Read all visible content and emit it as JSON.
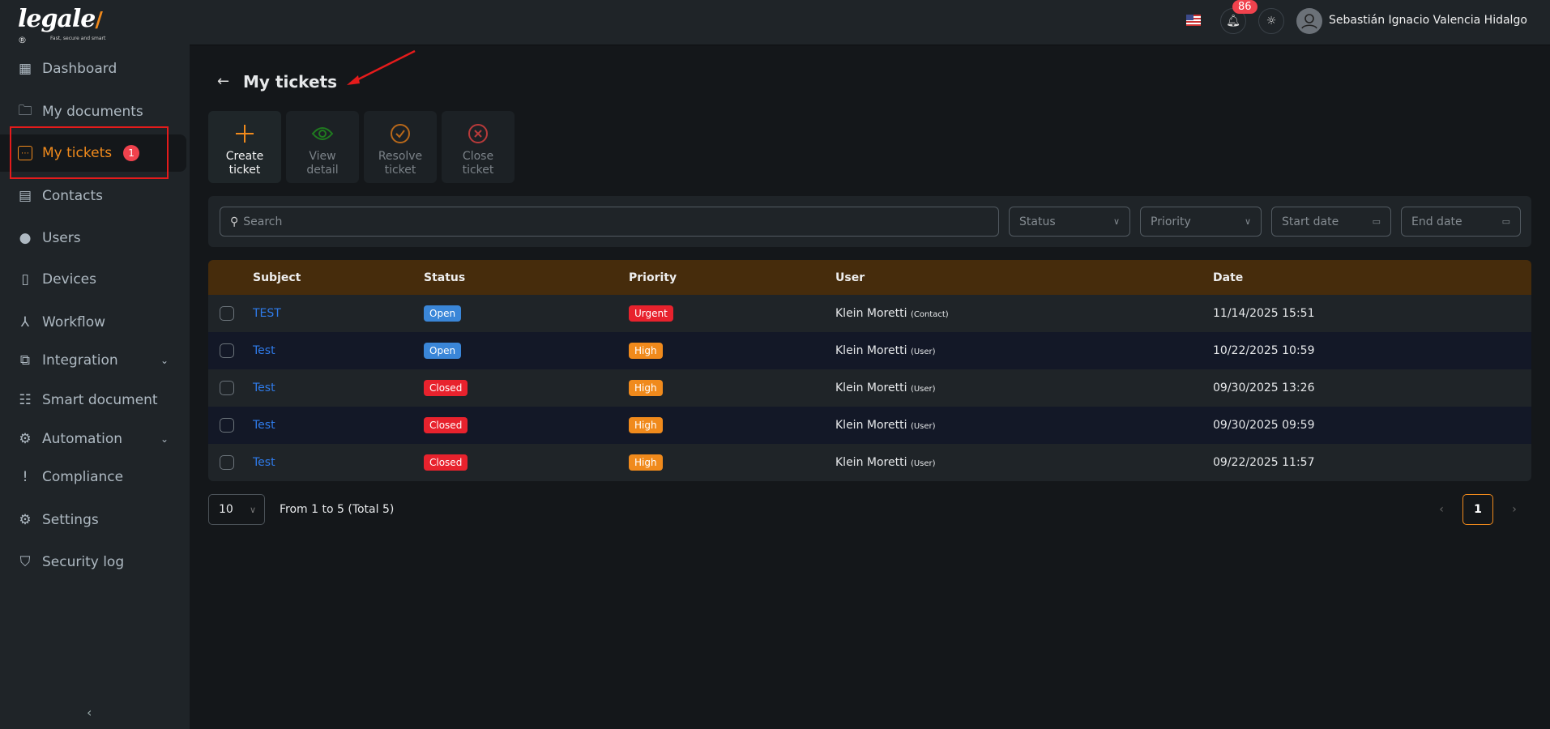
{
  "brand": {
    "name": "legale",
    "tagline": "Fast, secure and smart"
  },
  "sidebar": {
    "items": [
      {
        "label": "Dashboard",
        "icon": "dashboard-icon"
      },
      {
        "label": "My documents",
        "icon": "folder-icon"
      },
      {
        "label": "My tickets",
        "icon": "ticket-message-icon",
        "badge": "1",
        "active": true
      },
      {
        "label": "Contacts",
        "icon": "contacts-icon"
      },
      {
        "label": "Users",
        "icon": "user-circle-icon"
      },
      {
        "label": "Devices",
        "icon": "device-icon"
      },
      {
        "label": "Workflow",
        "icon": "workflow-icon"
      },
      {
        "label": "Integration",
        "icon": "external-link-icon",
        "expandable": true
      },
      {
        "label": "Smart document",
        "icon": "layout-icon"
      },
      {
        "label": "Automation",
        "icon": "gear-play-icon",
        "expandable": true
      },
      {
        "label": "Compliance",
        "icon": "alert-message-icon"
      },
      {
        "label": "Settings",
        "icon": "gear-icon"
      },
      {
        "label": "Security log",
        "icon": "shield-check-icon"
      }
    ],
    "collapse": "‹"
  },
  "header": {
    "notifications": "86",
    "user_name": "Sebastián Ignacio Valencia Hidalgo"
  },
  "page": {
    "title": "My tickets"
  },
  "actions": [
    {
      "label": "Create ticket",
      "color": "#f08a1c"
    },
    {
      "label": "View detail",
      "color": "#1f7a1f"
    },
    {
      "label": "Resolve ticket",
      "color": "#b8681a"
    },
    {
      "label": "Close ticket",
      "color": "#b83a3a"
    }
  ],
  "filters": {
    "search_placeholder": "Search",
    "status": "Status",
    "priority": "Priority",
    "start_date": "Start date",
    "end_date": "End date"
  },
  "table": {
    "columns": [
      "Subject",
      "Status",
      "Priority",
      "User",
      "Date"
    ],
    "rows": [
      {
        "subject": "TEST",
        "status": "Open",
        "priority": "Urgent",
        "user": "Klein Moretti",
        "role": "(Contact)",
        "date": "11/14/2025 15:51"
      },
      {
        "subject": "Test",
        "status": "Open",
        "priority": "High",
        "user": "Klein Moretti",
        "role": "(User)",
        "date": "10/22/2025 10:59"
      },
      {
        "subject": "Test",
        "status": "Closed",
        "priority": "High",
        "user": "Klein Moretti",
        "role": "(User)",
        "date": "09/30/2025 13:26"
      },
      {
        "subject": "Test",
        "status": "Closed",
        "priority": "High",
        "user": "Klein Moretti",
        "role": "(User)",
        "date": "09/30/2025 09:59"
      },
      {
        "subject": "Test",
        "status": "Closed",
        "priority": "High",
        "user": "Klein Moretti",
        "role": "(User)",
        "date": "09/22/2025 11:57"
      }
    ]
  },
  "pagination": {
    "page_size": "10",
    "range": "From 1 to 5 (Total 5)",
    "current_page": "1",
    "prev": "‹",
    "next": "›"
  },
  "colors": {
    "Open": "#3a86d8",
    "Closed": "#e8222d",
    "Urgent": "#e8222d",
    "High": "#f08a1c"
  }
}
